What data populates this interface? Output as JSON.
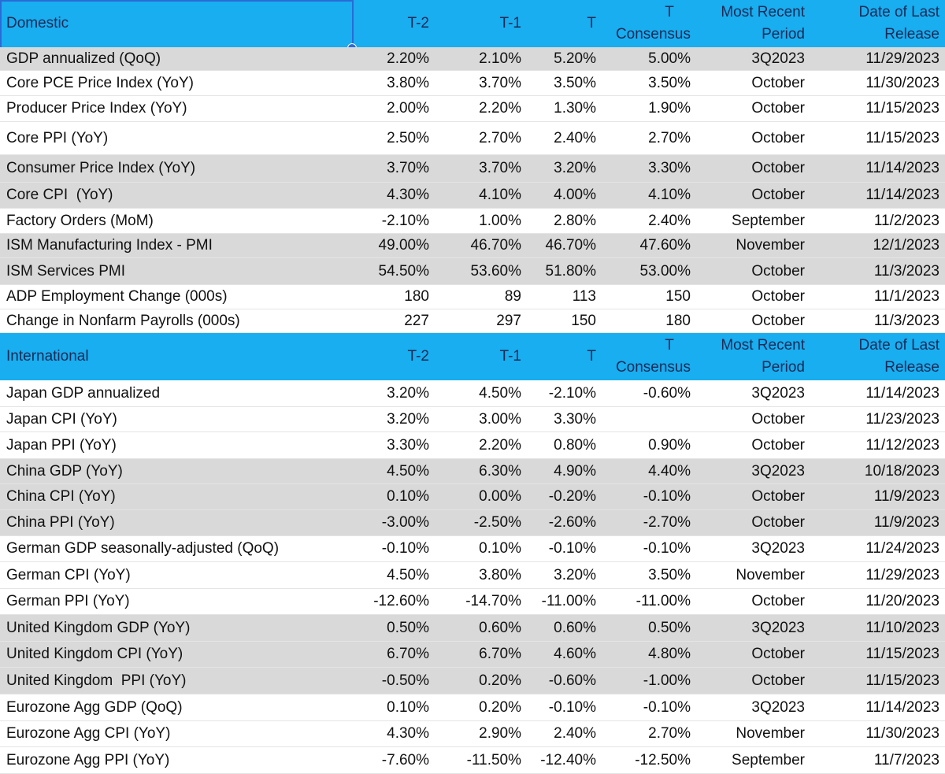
{
  "sections": [
    {
      "header": [
        [
          "Domestic"
        ],
        [
          "T-2"
        ],
        [
          "T-1"
        ],
        [
          "T"
        ],
        [
          "T",
          "Consensus"
        ],
        [
          "Most Recent",
          "Period"
        ],
        [
          "Date of Last",
          "Release"
        ]
      ],
      "rows": [
        [
          "GDP annualized (QoQ)",
          "2.20%",
          "2.10%",
          "5.20%",
          "5.00%",
          "3Q2023",
          "11/29/2023"
        ],
        [
          "Core PCE Price Index (YoY)",
          "3.80%",
          "3.70%",
          "3.50%",
          "3.50%",
          "October",
          "11/30/2023"
        ],
        [
          "Producer Price Index (YoY)",
          "2.00%",
          "2.20%",
          "1.30%",
          "1.90%",
          "October",
          "11/15/2023"
        ],
        [
          "Core PPI (YoY)",
          "2.50%",
          "2.70%",
          "2.40%",
          "2.70%",
          "October",
          "11/15/2023"
        ],
        [
          "Consumer Price Index (YoY)",
          "3.70%",
          "3.70%",
          "3.20%",
          "3.30%",
          "October",
          "11/14/2023"
        ],
        [
          "Core CPI  (YoY)",
          "4.30%",
          "4.10%",
          "4.00%",
          "4.10%",
          "October",
          "11/14/2023"
        ],
        [
          "Factory Orders (MoM)",
          "-2.10%",
          "1.00%",
          "2.80%",
          "2.40%",
          "September",
          "11/2/2023"
        ],
        [
          "ISM Manufacturing Index - PMI",
          "49.00%",
          "46.70%",
          "46.70%",
          "47.60%",
          "November",
          "12/1/2023"
        ],
        [
          "ISM Services PMI",
          "54.50%",
          "53.60%",
          "51.80%",
          "53.00%",
          "October",
          "11/3/2023"
        ],
        [
          "ADP Employment Change (000s)",
          "180",
          "89",
          "113",
          "150",
          "October",
          "11/1/2023"
        ],
        [
          "Change in Nonfarm Payrolls (000s)",
          "227",
          "297",
          "150",
          "180",
          "October",
          "11/3/2023"
        ]
      ]
    },
    {
      "header": [
        [
          "International"
        ],
        [
          "T-2"
        ],
        [
          "T-1"
        ],
        [
          "T"
        ],
        [
          "T",
          "Consensus"
        ],
        [
          "Most Recent",
          "Period"
        ],
        [
          "Date of Last",
          "Release"
        ]
      ],
      "rows": [
        [
          "Japan GDP annualized",
          "3.20%",
          "4.50%",
          "-2.10%",
          "-0.60%",
          "3Q2023",
          "11/14/2023"
        ],
        [
          "Japan CPI (YoY)",
          "3.20%",
          "3.00%",
          "3.30%",
          null,
          "October",
          "11/23/2023"
        ],
        [
          "Japan PPI (YoY)",
          "3.30%",
          "2.20%",
          "0.80%",
          "0.90%",
          "October",
          "11/12/2023"
        ],
        [
          "China GDP (YoY)",
          "4.50%",
          "6.30%",
          "4.90%",
          "4.40%",
          "3Q2023",
          "10/18/2023"
        ],
        [
          "China CPI (YoY)",
          "0.10%",
          "0.00%",
          "-0.20%",
          "-0.10%",
          "October",
          "11/9/2023"
        ],
        [
          "China PPI (YoY)",
          "-3.00%",
          "-2.50%",
          "-2.60%",
          "-2.70%",
          "October",
          "11/9/2023"
        ],
        [
          "German GDP seasonally-adjusted (QoQ)",
          "-0.10%",
          "0.10%",
          "-0.10%",
          "-0.10%",
          "3Q2023",
          "11/24/2023"
        ],
        [
          "German CPI (YoY)",
          "4.50%",
          "3.80%",
          "3.20%",
          "3.50%",
          "November",
          "11/29/2023"
        ],
        [
          "German PPI (YoY)",
          "-12.60%",
          "-14.70%",
          "-11.00%",
          "-11.00%",
          "October",
          "11/20/2023"
        ],
        [
          "United Kingdom GDP (YoY)",
          "0.50%",
          "0.60%",
          "0.60%",
          "0.50%",
          "3Q2023",
          "11/10/2023"
        ],
        [
          "United Kingdom CPI (YoY)",
          "6.70%",
          "6.70%",
          "4.60%",
          "4.80%",
          "October",
          "11/15/2023"
        ],
        [
          "United Kingdom  PPI (YoY)",
          "-0.50%",
          "0.20%",
          "-0.60%",
          "-1.00%",
          "October",
          "11/15/2023"
        ],
        [
          "Eurozone Agg GDP (QoQ)",
          "0.10%",
          "0.20%",
          "-0.10%",
          "-0.10%",
          "3Q2023",
          "11/14/2023"
        ],
        [
          "Eurozone Agg CPI (YoY)",
          "4.30%",
          "2.90%",
          "2.40%",
          "2.70%",
          "November",
          "11/30/2023"
        ],
        [
          "Eurozone Agg PPI (YoY)",
          "-7.60%",
          "-11.50%",
          "-12.40%",
          "-12.50%",
          "September",
          "11/7/2023"
        ]
      ]
    }
  ]
}
